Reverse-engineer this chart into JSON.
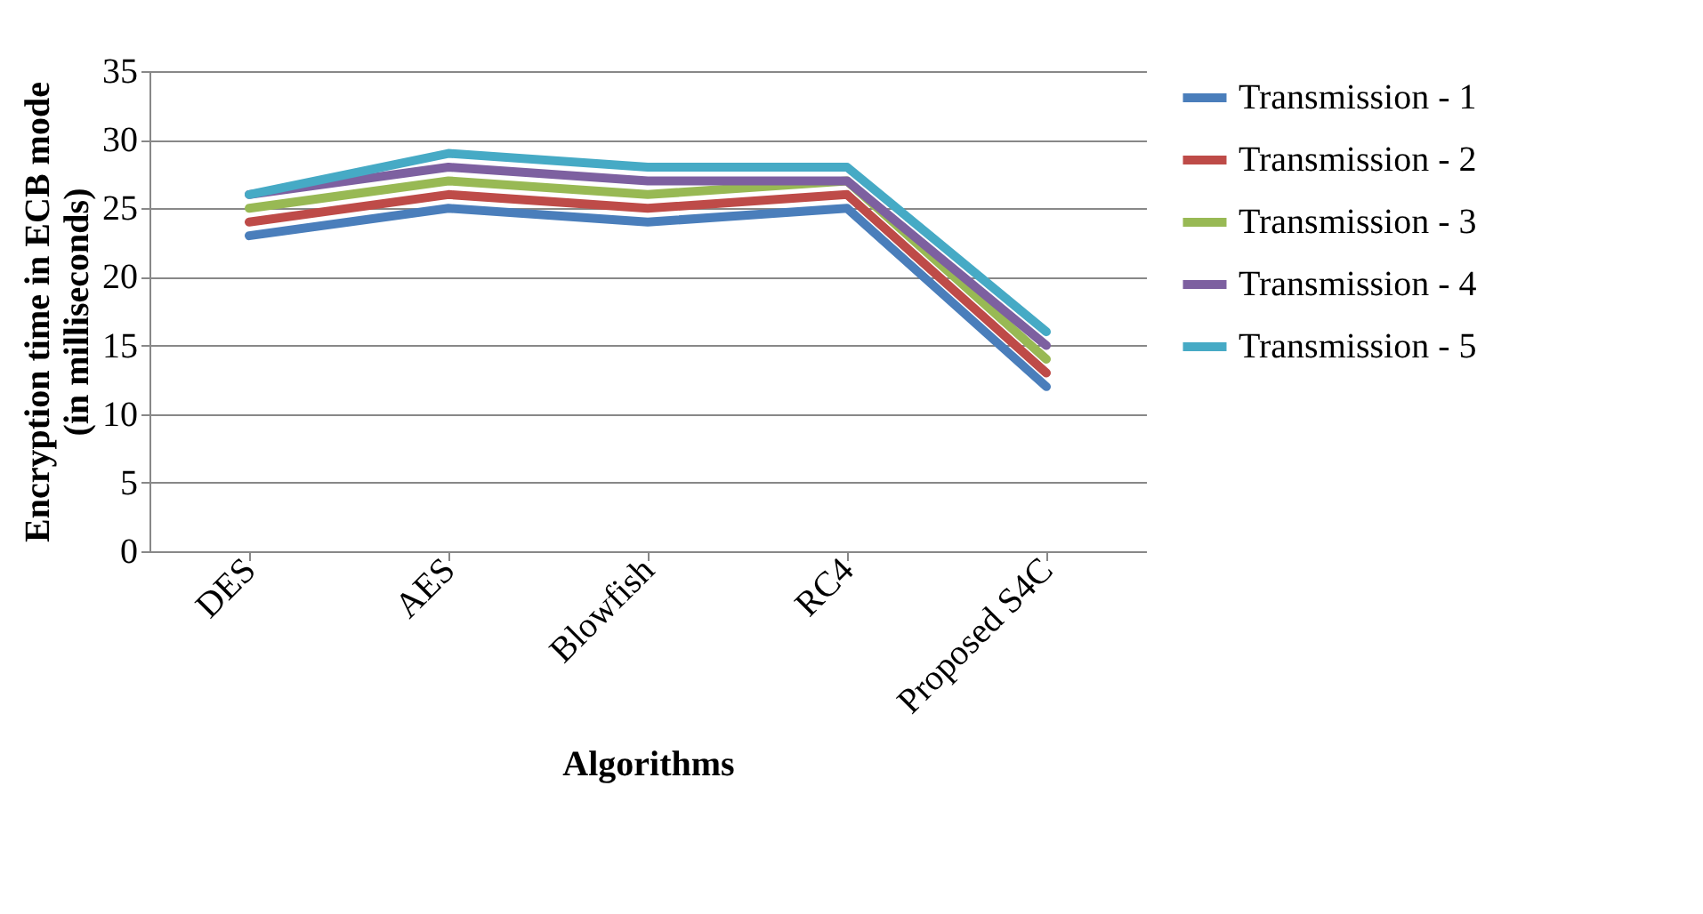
{
  "chart_data": {
    "type": "line",
    "xlabel": "Algorithms",
    "ylabel": "Encryption time in ECB mode\n(in milliseconds)",
    "categories": [
      "DES",
      "AES",
      "Blowfish",
      "RC4",
      "Proposed S4C"
    ],
    "series": [
      {
        "name": "Transmission - 1",
        "color": "#4a7ebb",
        "values": [
          23,
          25,
          24,
          25,
          12
        ]
      },
      {
        "name": "Transmission - 2",
        "color": "#be4b48",
        "values": [
          24,
          26,
          25,
          26,
          13
        ]
      },
      {
        "name": "Transmission - 3",
        "color": "#98b954",
        "values": [
          25,
          27,
          26,
          27,
          14
        ]
      },
      {
        "name": "Transmission - 4",
        "color": "#7d60a0",
        "values": [
          26,
          28,
          27,
          27,
          15
        ]
      },
      {
        "name": "Transmission - 5",
        "color": "#46aac5",
        "values": [
          26,
          29,
          28,
          28,
          16
        ]
      }
    ],
    "ylim": [
      0,
      35
    ],
    "yticks": [
      0,
      5,
      10,
      15,
      20,
      25,
      30,
      35
    ],
    "grid": "y",
    "legend": "right",
    "marker": "none",
    "line_style": "solid"
  }
}
